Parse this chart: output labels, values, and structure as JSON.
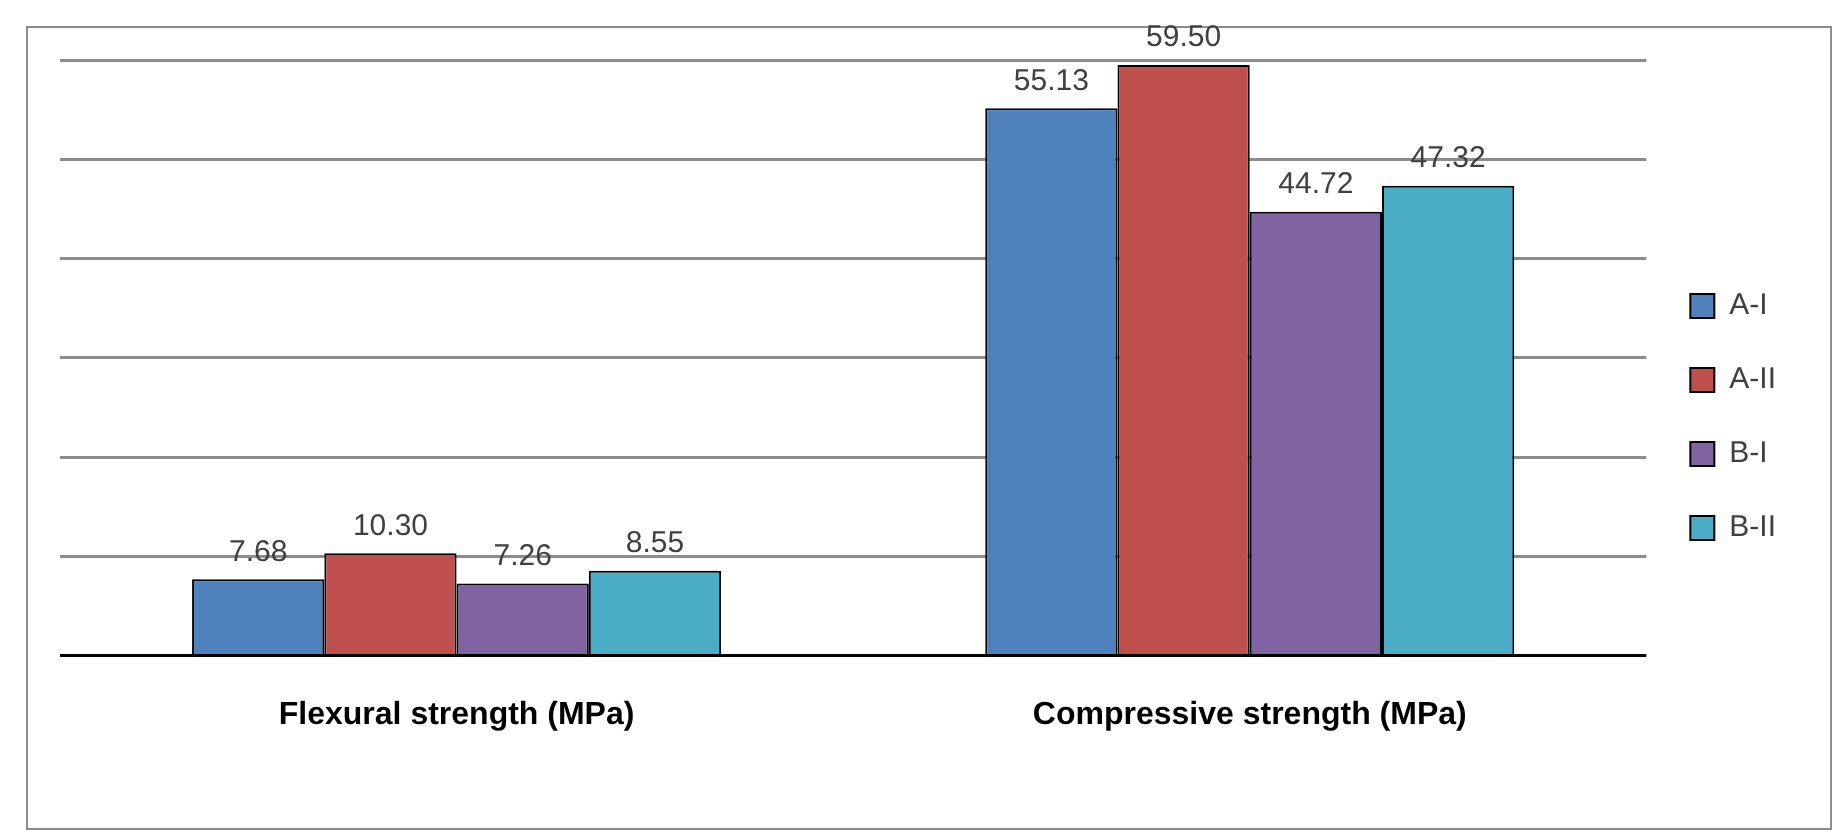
{
  "chart_data": {
    "type": "bar",
    "categories": [
      "Flexural strength (MPa)",
      "Compressive strength (MPa)"
    ],
    "series": [
      {
        "name": "A-I",
        "color": "#4f81bd",
        "values": [
          7.68,
          55.13
        ],
        "value_labels": [
          "7.68",
          "55.13"
        ]
      },
      {
        "name": "A-II",
        "color": "#c0504d",
        "values": [
          10.3,
          59.5
        ],
        "value_labels": [
          "10.30",
          "59.50"
        ]
      },
      {
        "name": "B-I",
        "color": "#8064a2",
        "values": [
          7.26,
          44.72
        ],
        "value_labels": [
          "7.26",
          "44.72"
        ]
      },
      {
        "name": "B-II",
        "color": "#4bacc6",
        "values": [
          8.55,
          47.32
        ],
        "value_labels": [
          "8.55",
          "47.32"
        ]
      }
    ],
    "tick_labels": "x",
    "grid": "y",
    "legend": "right"
  }
}
